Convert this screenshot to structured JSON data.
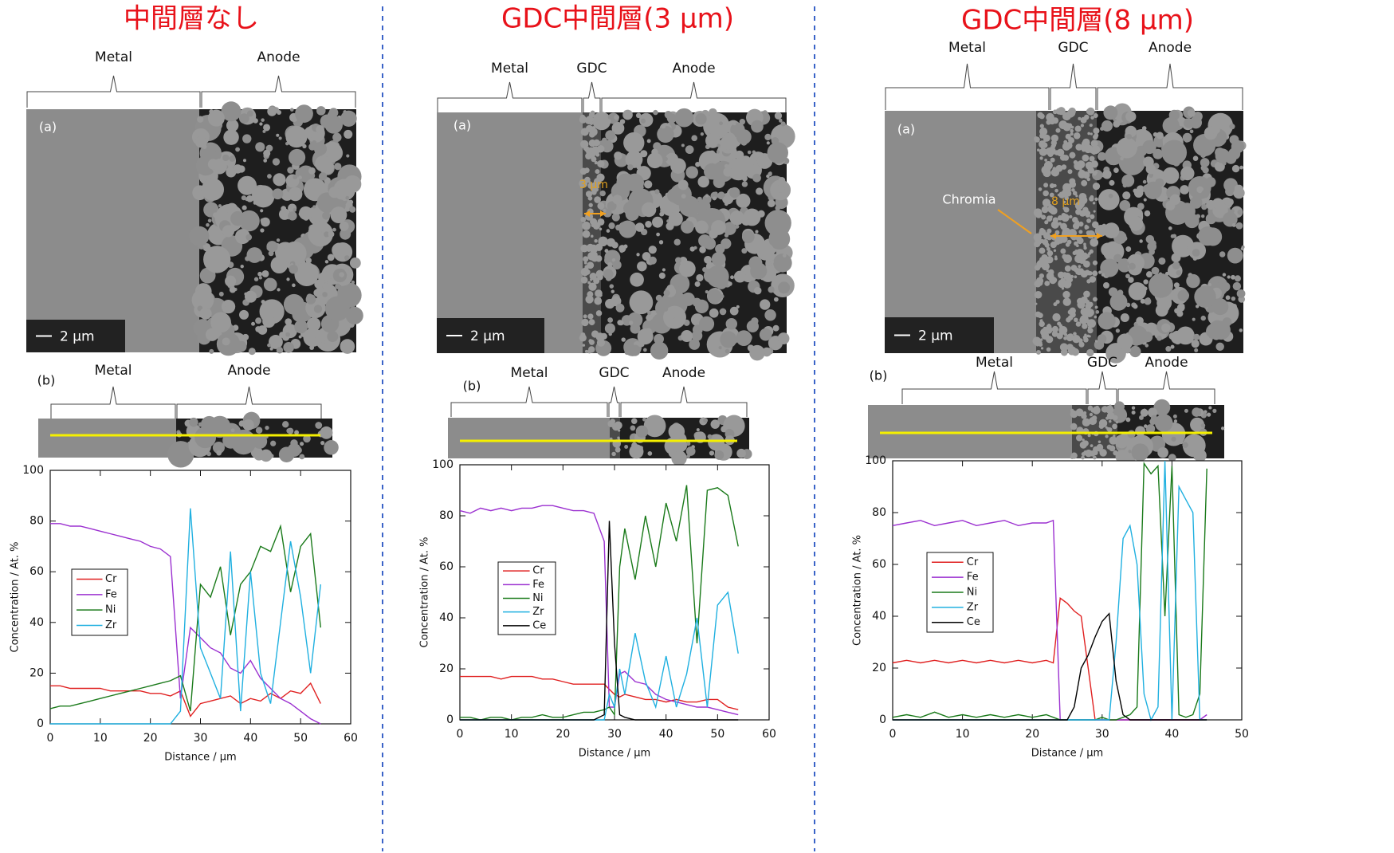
{
  "chart_data": [
    {
      "type": "line",
      "title": "中間層なし",
      "image_labels": {
        "top": [
          "Metal",
          "Anode"
        ],
        "panel_a": "(a)",
        "scale": "2 µm",
        "panel_b": "(b)",
        "bottom": [
          "Metal",
          "Anode"
        ]
      },
      "xlabel": "Distance / μm",
      "ylabel": "Concentration / At. %",
      "xlim": [
        0,
        60
      ],
      "ylim": [
        0,
        100
      ],
      "xticks": [
        0,
        10,
        20,
        30,
        40,
        50,
        60
      ],
      "yticks": [
        0,
        20,
        40,
        60,
        80,
        100
      ],
      "x": [
        0,
        2,
        4,
        6,
        8,
        10,
        12,
        14,
        16,
        18,
        20,
        22,
        24,
        26,
        28,
        30,
        32,
        34,
        36,
        38,
        40,
        42,
        44,
        46,
        48,
        50,
        52,
        54
      ],
      "series": [
        {
          "name": "Cr",
          "color": "#e02020",
          "values": [
            15,
            15,
            14,
            14,
            14,
            14,
            13,
            13,
            13,
            13,
            12,
            12,
            11,
            13,
            3,
            8,
            9,
            10,
            11,
            8,
            10,
            9,
            12,
            10,
            13,
            12,
            16,
            8
          ]
        },
        {
          "name": "Fe",
          "color": "#9b30d0",
          "values": [
            79,
            79,
            78,
            78,
            77,
            76,
            75,
            74,
            73,
            72,
            70,
            69,
            66,
            10,
            38,
            34,
            30,
            28,
            22,
            20,
            25,
            18,
            14,
            10,
            8,
            5,
            2,
            0
          ]
        },
        {
          "name": "Ni",
          "color": "#1a7a1a",
          "values": [
            6,
            7,
            7,
            8,
            9,
            10,
            11,
            12,
            13,
            14,
            15,
            16,
            17,
            19,
            5,
            55,
            50,
            62,
            35,
            55,
            60,
            70,
            68,
            78,
            52,
            70,
            75,
            38
          ]
        },
        {
          "name": "Zr",
          "color": "#20b0e0",
          "values": [
            0,
            0,
            0,
            0,
            0,
            0,
            0,
            0,
            0,
            0,
            0,
            0,
            0,
            5,
            85,
            30,
            20,
            10,
            68,
            5,
            60,
            20,
            8,
            40,
            72,
            50,
            20,
            55
          ]
        }
      ]
    },
    {
      "type": "line",
      "title": "GDC中間層(3 µm)",
      "image_labels": {
        "top": [
          "Metal",
          "GDC",
          "Anode"
        ],
        "panel_a": "(a)",
        "thickness": "3 µm",
        "scale": "2 µm",
        "panel_b": "(b)",
        "bottom": [
          "Metal",
          "GDC",
          "Anode"
        ]
      },
      "xlabel": "Distance / μm",
      "ylabel": "Concentration / At. %",
      "xlim": [
        0,
        60
      ],
      "ylim": [
        0,
        100
      ],
      "xticks": [
        0,
        10,
        20,
        30,
        40,
        50,
        60
      ],
      "yticks": [
        0,
        20,
        40,
        60,
        80,
        100
      ],
      "x": [
        0,
        2,
        4,
        6,
        8,
        10,
        12,
        14,
        16,
        18,
        20,
        22,
        24,
        26,
        28,
        29,
        30,
        31,
        32,
        34,
        36,
        38,
        40,
        42,
        44,
        46,
        48,
        50,
        52,
        54
      ],
      "series": [
        {
          "name": "Cr",
          "color": "#e02020",
          "values": [
            17,
            17,
            17,
            17,
            16,
            17,
            17,
            17,
            16,
            16,
            15,
            14,
            14,
            14,
            14,
            12,
            10,
            9,
            10,
            9,
            8,
            8,
            7,
            8,
            7,
            7,
            8,
            8,
            5,
            4
          ]
        },
        {
          "name": "Fe",
          "color": "#9b30d0",
          "values": [
            82,
            81,
            83,
            82,
            83,
            82,
            83,
            83,
            84,
            84,
            83,
            82,
            82,
            81,
            70,
            5,
            5,
            18,
            19,
            15,
            14,
            10,
            8,
            7,
            6,
            5,
            5,
            4,
            3,
            2
          ]
        },
        {
          "name": "Ni",
          "color": "#1a7a1a",
          "values": [
            1,
            1,
            0,
            1,
            1,
            0,
            1,
            1,
            2,
            1,
            1,
            2,
            3,
            3,
            4,
            5,
            2,
            60,
            75,
            55,
            80,
            60,
            85,
            70,
            92,
            30,
            90,
            91,
            88,
            68
          ]
        },
        {
          "name": "Zr",
          "color": "#20b0e0",
          "values": [
            0,
            0,
            0,
            0,
            0,
            0,
            0,
            0,
            0,
            0,
            0,
            0,
            0,
            0,
            0,
            10,
            5,
            20,
            10,
            34,
            15,
            5,
            25,
            5,
            18,
            40,
            5,
            45,
            50,
            26
          ]
        },
        {
          "name": "Ce",
          "color": "#000000",
          "values": [
            0,
            0,
            0,
            0,
            0,
            0,
            0,
            0,
            0,
            0,
            0,
            0,
            0,
            0,
            2,
            78,
            30,
            2,
            1,
            0,
            0,
            0,
            0,
            0,
            0,
            0,
            0,
            0,
            0,
            0
          ]
        }
      ]
    },
    {
      "type": "line",
      "title": "GDC中間層(8 µm)",
      "image_labels": {
        "top": [
          "Metal",
          "GDC",
          "Anode"
        ],
        "panel_a": "(a)",
        "chromia": "Chromia",
        "thickness": "8 µm",
        "scale": "2 µm",
        "panel_b": "(b)",
        "bottom": [
          "Metal",
          "GDC",
          "Anode"
        ]
      },
      "xlabel": "Distance / μm",
      "ylabel": "Concentration / At. %",
      "xlim": [
        0,
        50
      ],
      "ylim": [
        0,
        100
      ],
      "xticks": [
        0,
        10,
        20,
        30,
        40,
        50
      ],
      "yticks": [
        0,
        20,
        40,
        60,
        80,
        100
      ],
      "x": [
        0,
        2,
        4,
        6,
        8,
        10,
        12,
        14,
        16,
        18,
        20,
        22,
        23,
        24,
        25,
        26,
        27,
        28,
        29,
        30,
        31,
        32,
        33,
        34,
        35,
        36,
        37,
        38,
        39,
        40,
        41,
        42,
        43,
        44,
        45
      ],
      "series": [
        {
          "name": "Cr",
          "color": "#e02020",
          "values": [
            22,
            23,
            22,
            23,
            22,
            23,
            22,
            23,
            22,
            23,
            22,
            23,
            22,
            47,
            45,
            42,
            40,
            20,
            0,
            0,
            0,
            0,
            0,
            0,
            0,
            0,
            0,
            0,
            0,
            0,
            0,
            0,
            0,
            0,
            0
          ]
        },
        {
          "name": "Fe",
          "color": "#9b30d0",
          "values": [
            75,
            76,
            77,
            75,
            76,
            77,
            75,
            76,
            77,
            75,
            76,
            76,
            77,
            0,
            0,
            0,
            0,
            0,
            0,
            0,
            0,
            0,
            0,
            0,
            0,
            0,
            0,
            0,
            0,
            0,
            0,
            0,
            0,
            0,
            2
          ]
        },
        {
          "name": "Ni",
          "color": "#1a7a1a",
          "values": [
            1,
            2,
            1,
            3,
            1,
            2,
            1,
            2,
            1,
            2,
            1,
            2,
            1,
            0,
            0,
            0,
            0,
            0,
            0,
            1,
            0,
            0,
            1,
            2,
            5,
            99,
            95,
            98,
            40,
            98,
            2,
            1,
            2,
            10,
            97
          ]
        },
        {
          "name": "Zr",
          "color": "#20b0e0",
          "values": [
            0,
            0,
            0,
            0,
            0,
            0,
            0,
            0,
            0,
            0,
            0,
            0,
            0,
            0,
            0,
            0,
            0,
            0,
            0,
            0,
            0,
            30,
            70,
            75,
            60,
            10,
            0,
            5,
            100,
            0,
            90,
            85,
            80,
            0,
            0
          ]
        },
        {
          "name": "Ce",
          "color": "#000000",
          "values": [
            0,
            0,
            0,
            0,
            0,
            0,
            0,
            0,
            0,
            0,
            0,
            0,
            0,
            0,
            0,
            5,
            20,
            25,
            32,
            38,
            41,
            15,
            2,
            0,
            0,
            0,
            0,
            0,
            0,
            0,
            0,
            0,
            0,
            0,
            0
          ]
        }
      ]
    }
  ]
}
